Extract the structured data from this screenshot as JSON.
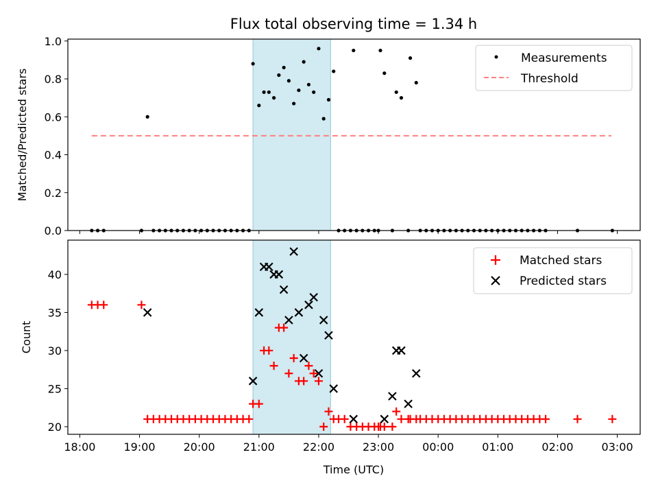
{
  "title": "Flux total observing time = 1.34 h",
  "xlabel": "Time (UTC)",
  "colors": {
    "band": "#add8e6",
    "threshold": "#ff7f7f",
    "matched": "#ff0000",
    "predicted": "#000000",
    "measure": "#000000"
  },
  "chart_data": [
    {
      "type": "scatter",
      "ylabel": "Matched/Predicted stars",
      "xlim": [
        "17:48",
        "03:23"
      ],
      "ylim": [
        0,
        1.01
      ],
      "xticks": [
        "18:00",
        "19:00",
        "20:00",
        "21:00",
        "22:00",
        "23:00",
        "00:00",
        "01:00",
        "02:00",
        "03:00"
      ],
      "yticks": [
        "0.0",
        "0.2",
        "0.4",
        "0.6",
        "0.8",
        "1.0"
      ],
      "grid": false,
      "legend_position": "upper right",
      "shaded_interval": [
        "20:54",
        "22:12"
      ],
      "threshold": {
        "name": "Threshold",
        "y": 0.5,
        "x": [
          "18:12",
          "02:54"
        ]
      },
      "series": [
        {
          "name": "Measurements",
          "x": [
            "18:12",
            "18:18",
            "18:24",
            "19:02",
            "19:08",
            "19:14",
            "19:20",
            "19:26",
            "19:32",
            "19:38",
            "19:44",
            "19:50",
            "19:56",
            "20:02",
            "20:08",
            "20:14",
            "20:20",
            "20:26",
            "20:32",
            "20:38",
            "20:44",
            "20:50",
            "20:54",
            "21:00",
            "21:05",
            "21:10",
            "21:15",
            "21:20",
            "21:25",
            "21:30",
            "21:35",
            "21:40",
            "21:45",
            "21:50",
            "21:55",
            "22:00",
            "22:05",
            "22:10",
            "22:15",
            "22:20",
            "22:26",
            "22:32",
            "22:35",
            "22:38",
            "22:44",
            "22:50",
            "22:56",
            "23:00",
            "23:02",
            "23:06",
            "23:14",
            "23:18",
            "23:23",
            "23:30",
            "23:32",
            "23:38",
            "23:42",
            "23:48",
            "23:54",
            "00:00",
            "00:06",
            "00:12",
            "00:18",
            "00:24",
            "00:30",
            "00:36",
            "00:42",
            "00:48",
            "00:54",
            "01:00",
            "01:06",
            "01:12",
            "01:18",
            "01:24",
            "01:30",
            "01:36",
            "01:42",
            "01:48",
            "02:20",
            "02:55"
          ],
          "y": [
            0,
            0,
            0,
            0,
            0.6,
            0,
            0,
            0,
            0,
            0,
            0,
            0,
            0,
            0,
            0,
            0,
            0,
            0,
            0,
            0,
            0,
            0,
            0.88,
            0.66,
            0.73,
            0.73,
            0.7,
            0.82,
            0.86,
            0.79,
            0.67,
            0.74,
            0.89,
            0.77,
            0.73,
            0.96,
            0.59,
            0.69,
            0.84,
            0,
            0,
            0,
            0.95,
            0,
            0,
            0,
            0,
            0,
            0.95,
            0.83,
            0,
            0.73,
            0.7,
            0,
            0.91,
            0.78,
            0,
            0,
            0,
            0,
            0,
            0,
            0,
            0,
            0,
            0,
            0,
            0,
            0,
            0,
            0,
            0,
            0,
            0,
            0,
            0,
            0,
            0,
            0,
            0
          ]
        }
      ]
    },
    {
      "type": "scatter",
      "ylabel": "Count",
      "xlim": [
        "17:48",
        "03:23"
      ],
      "ylim": [
        19,
        44.5
      ],
      "xticks": [
        "18:00",
        "19:00",
        "20:00",
        "21:00",
        "22:00",
        "23:00",
        "00:00",
        "01:00",
        "02:00",
        "03:00"
      ],
      "yticks": [
        "20",
        "25",
        "30",
        "35",
        "40"
      ],
      "grid": false,
      "legend_position": "upper right",
      "shaded_interval": [
        "20:54",
        "22:12"
      ],
      "series": [
        {
          "name": "Matched stars",
          "x": [
            "18:12",
            "18:18",
            "18:24",
            "19:02",
            "19:08",
            "19:14",
            "19:20",
            "19:26",
            "19:32",
            "19:38",
            "19:44",
            "19:50",
            "19:56",
            "20:02",
            "20:08",
            "20:14",
            "20:20",
            "20:26",
            "20:32",
            "20:38",
            "20:44",
            "20:50",
            "20:54",
            "21:00",
            "21:05",
            "21:10",
            "21:15",
            "21:20",
            "21:25",
            "21:30",
            "21:35",
            "21:40",
            "21:45",
            "21:50",
            "21:55",
            "22:00",
            "22:05",
            "22:10",
            "22:15",
            "22:20",
            "22:26",
            "22:32",
            "22:38",
            "22:44",
            "22:50",
            "22:56",
            "23:00",
            "23:02",
            "23:06",
            "23:14",
            "23:18",
            "23:23",
            "23:30",
            "23:32",
            "23:38",
            "23:42",
            "23:48",
            "23:54",
            "00:00",
            "00:06",
            "00:12",
            "00:18",
            "00:24",
            "00:30",
            "00:36",
            "00:42",
            "00:48",
            "00:54",
            "01:00",
            "01:06",
            "01:12",
            "01:18",
            "01:24",
            "01:30",
            "01:36",
            "01:42",
            "01:48",
            "02:20",
            "02:55"
          ],
          "y": [
            36,
            36,
            36,
            36,
            21,
            21,
            21,
            21,
            21,
            21,
            21,
            21,
            21,
            21,
            21,
            21,
            21,
            21,
            21,
            21,
            21,
            21,
            23,
            23,
            30,
            30,
            28,
            33,
            33,
            27,
            29,
            26,
            26,
            28,
            27,
            26,
            20,
            22,
            21,
            21,
            21,
            20,
            20,
            20,
            20,
            20,
            20,
            20,
            20,
            20,
            22,
            21,
            21,
            21,
            21,
            21,
            21,
            21,
            21,
            21,
            21,
            21,
            21,
            21,
            21,
            21,
            21,
            21,
            21,
            21,
            21,
            21,
            21,
            21,
            21,
            21,
            21,
            21,
            21
          ]
        },
        {
          "name": "Predicted stars",
          "x": [
            "19:08",
            "20:54",
            "21:00",
            "21:05",
            "21:10",
            "21:15",
            "21:20",
            "21:25",
            "21:30",
            "21:35",
            "21:40",
            "21:45",
            "21:50",
            "21:55",
            "22:00",
            "22:05",
            "22:10",
            "22:15",
            "22:35",
            "23:06",
            "23:14",
            "23:18",
            "23:23",
            "23:30",
            "23:38"
          ],
          "y": [
            35,
            26,
            35,
            41,
            41,
            40,
            40,
            38,
            34,
            43,
            35,
            29,
            36,
            37,
            27,
            34,
            32,
            25,
            21,
            21,
            24,
            30,
            30,
            23,
            27
          ]
        }
      ]
    }
  ]
}
